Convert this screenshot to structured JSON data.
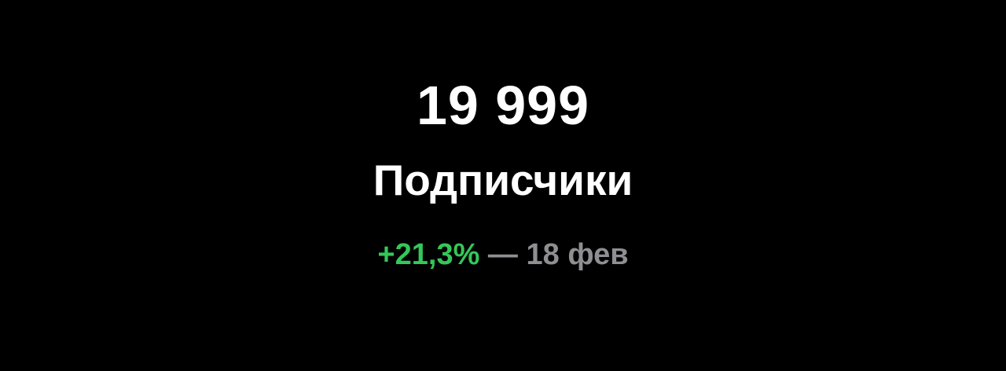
{
  "stat": {
    "value": "19 999",
    "label": "Подписчики",
    "change_percent": "+21,3%",
    "change_separator": " — ",
    "change_date": "18 фев"
  },
  "colors": {
    "background": "#000000",
    "primary_text": "#ffffff",
    "positive": "#34c759",
    "secondary_text": "#8e8e93"
  }
}
